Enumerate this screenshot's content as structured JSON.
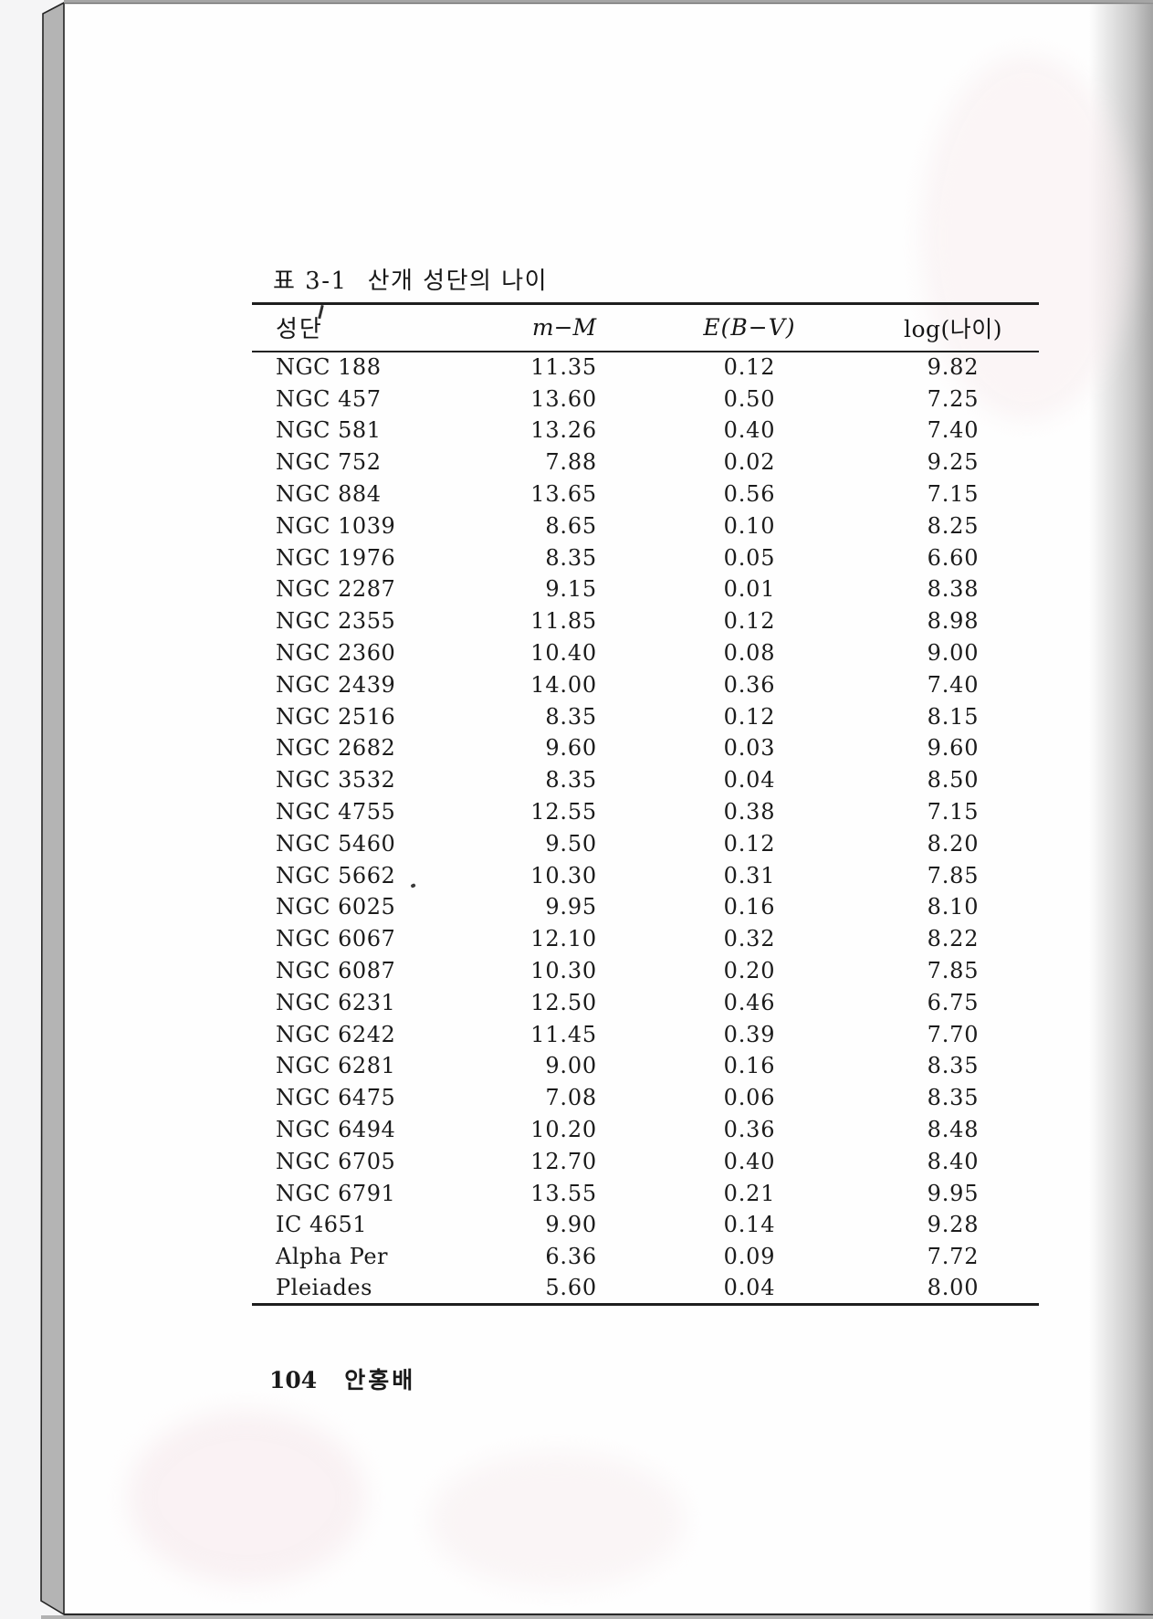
{
  "caption": {
    "label": "표 3-1",
    "title": "산개 성단의 나이"
  },
  "table": {
    "columns": [
      "성단",
      "m−M",
      "E(B−V)",
      "log(나이)"
    ],
    "rows": [
      [
        "NGC 188",
        "11.35",
        "0.12",
        "9.82"
      ],
      [
        "NGC 457",
        "13.60",
        "0.50",
        "7.25"
      ],
      [
        "NGC 581",
        "13.26",
        "0.40",
        "7.40"
      ],
      [
        "NGC 752",
        "7.88",
        "0.02",
        "9.25"
      ],
      [
        "NGC 884",
        "13.65",
        "0.56",
        "7.15"
      ],
      [
        "NGC 1039",
        "8.65",
        "0.10",
        "8.25"
      ],
      [
        "NGC 1976",
        "8.35",
        "0.05",
        "6.60"
      ],
      [
        "NGC 2287",
        "9.15",
        "0.01",
        "8.38"
      ],
      [
        "NGC 2355",
        "11.85",
        "0.12",
        "8.98"
      ],
      [
        "NGC 2360",
        "10.40",
        "0.08",
        "9.00"
      ],
      [
        "NGC 2439",
        "14.00",
        "0.36",
        "7.40"
      ],
      [
        "NGC 2516",
        "8.35",
        "0.12",
        "8.15"
      ],
      [
        "NGC 2682",
        "9.60",
        "0.03",
        "9.60"
      ],
      [
        "NGC 3532",
        "8.35",
        "0.04",
        "8.50"
      ],
      [
        "NGC 4755",
        "12.55",
        "0.38",
        "7.15"
      ],
      [
        "NGC 5460",
        "9.50",
        "0.12",
        "8.20"
      ],
      [
        "NGC 5662",
        "10.30",
        "0.31",
        "7.85"
      ],
      [
        "NGC 6025",
        "9.95",
        "0.16",
        "8.10"
      ],
      [
        "NGC 6067",
        "12.10",
        "0.32",
        "8.22"
      ],
      [
        "NGC 6087",
        "10.30",
        "0.20",
        "7.85"
      ],
      [
        "NGC 6231",
        "12.50",
        "0.46",
        "6.75"
      ],
      [
        "NGC 6242",
        "11.45",
        "0.39",
        "7.70"
      ],
      [
        "NGC 6281",
        "9.00",
        "0.16",
        "8.35"
      ],
      [
        "NGC 6475",
        "7.08",
        "0.06",
        "8.35"
      ],
      [
        "NGC 6494",
        "10.20",
        "0.36",
        "8.48"
      ],
      [
        "NGC 6705",
        "12.70",
        "0.40",
        "8.40"
      ],
      [
        "NGC 6791",
        "13.55",
        "0.21",
        "9.95"
      ],
      [
        "IC 4651",
        "9.90",
        "0.14",
        "9.28"
      ],
      [
        "Alpha Per",
        "6.36",
        "0.09",
        "7.72"
      ],
      [
        "Pleiades",
        "5.60",
        "0.04",
        "8.00"
      ]
    ]
  },
  "footer": {
    "page_number": "104",
    "author": "안홍배"
  }
}
